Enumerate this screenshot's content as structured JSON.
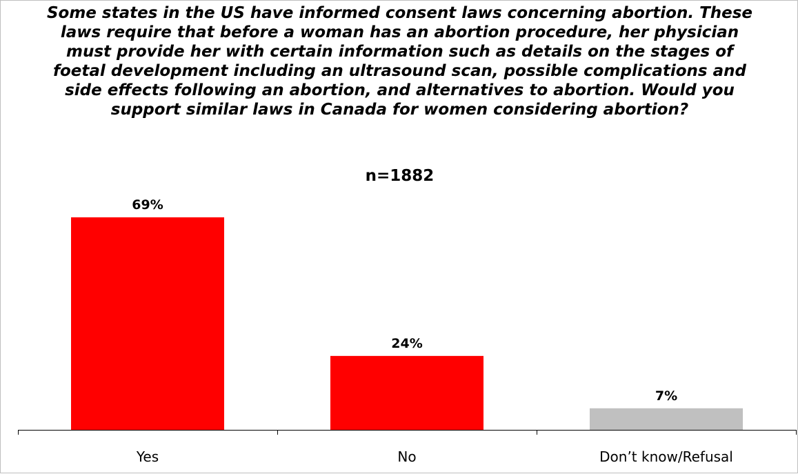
{
  "chart_data": {
    "type": "bar",
    "title": "Some states in the US have informed consent laws concerning abortion. These laws require that before a woman has an abortion procedure, her physician must provide her with certain information such as details on the stages of foetal development including an ultrasound scan, possible complications and side effects following an abortion, and alternatives to abortion. Would you support similar laws in Canada for women considering abortion?",
    "subtitle": "n=1882",
    "xlabel": "",
    "ylabel": "",
    "categories": [
      "Yes",
      "No",
      "Don’t know/Refusal"
    ],
    "values": [
      69,
      24,
      7
    ],
    "data_labels": [
      "69%",
      "24%",
      "7%"
    ],
    "colors": [
      "#ff0000",
      "#ff0000",
      "#c0c0c0"
    ],
    "ylim": [
      0,
      69
    ],
    "grid": false,
    "legend": "none"
  }
}
